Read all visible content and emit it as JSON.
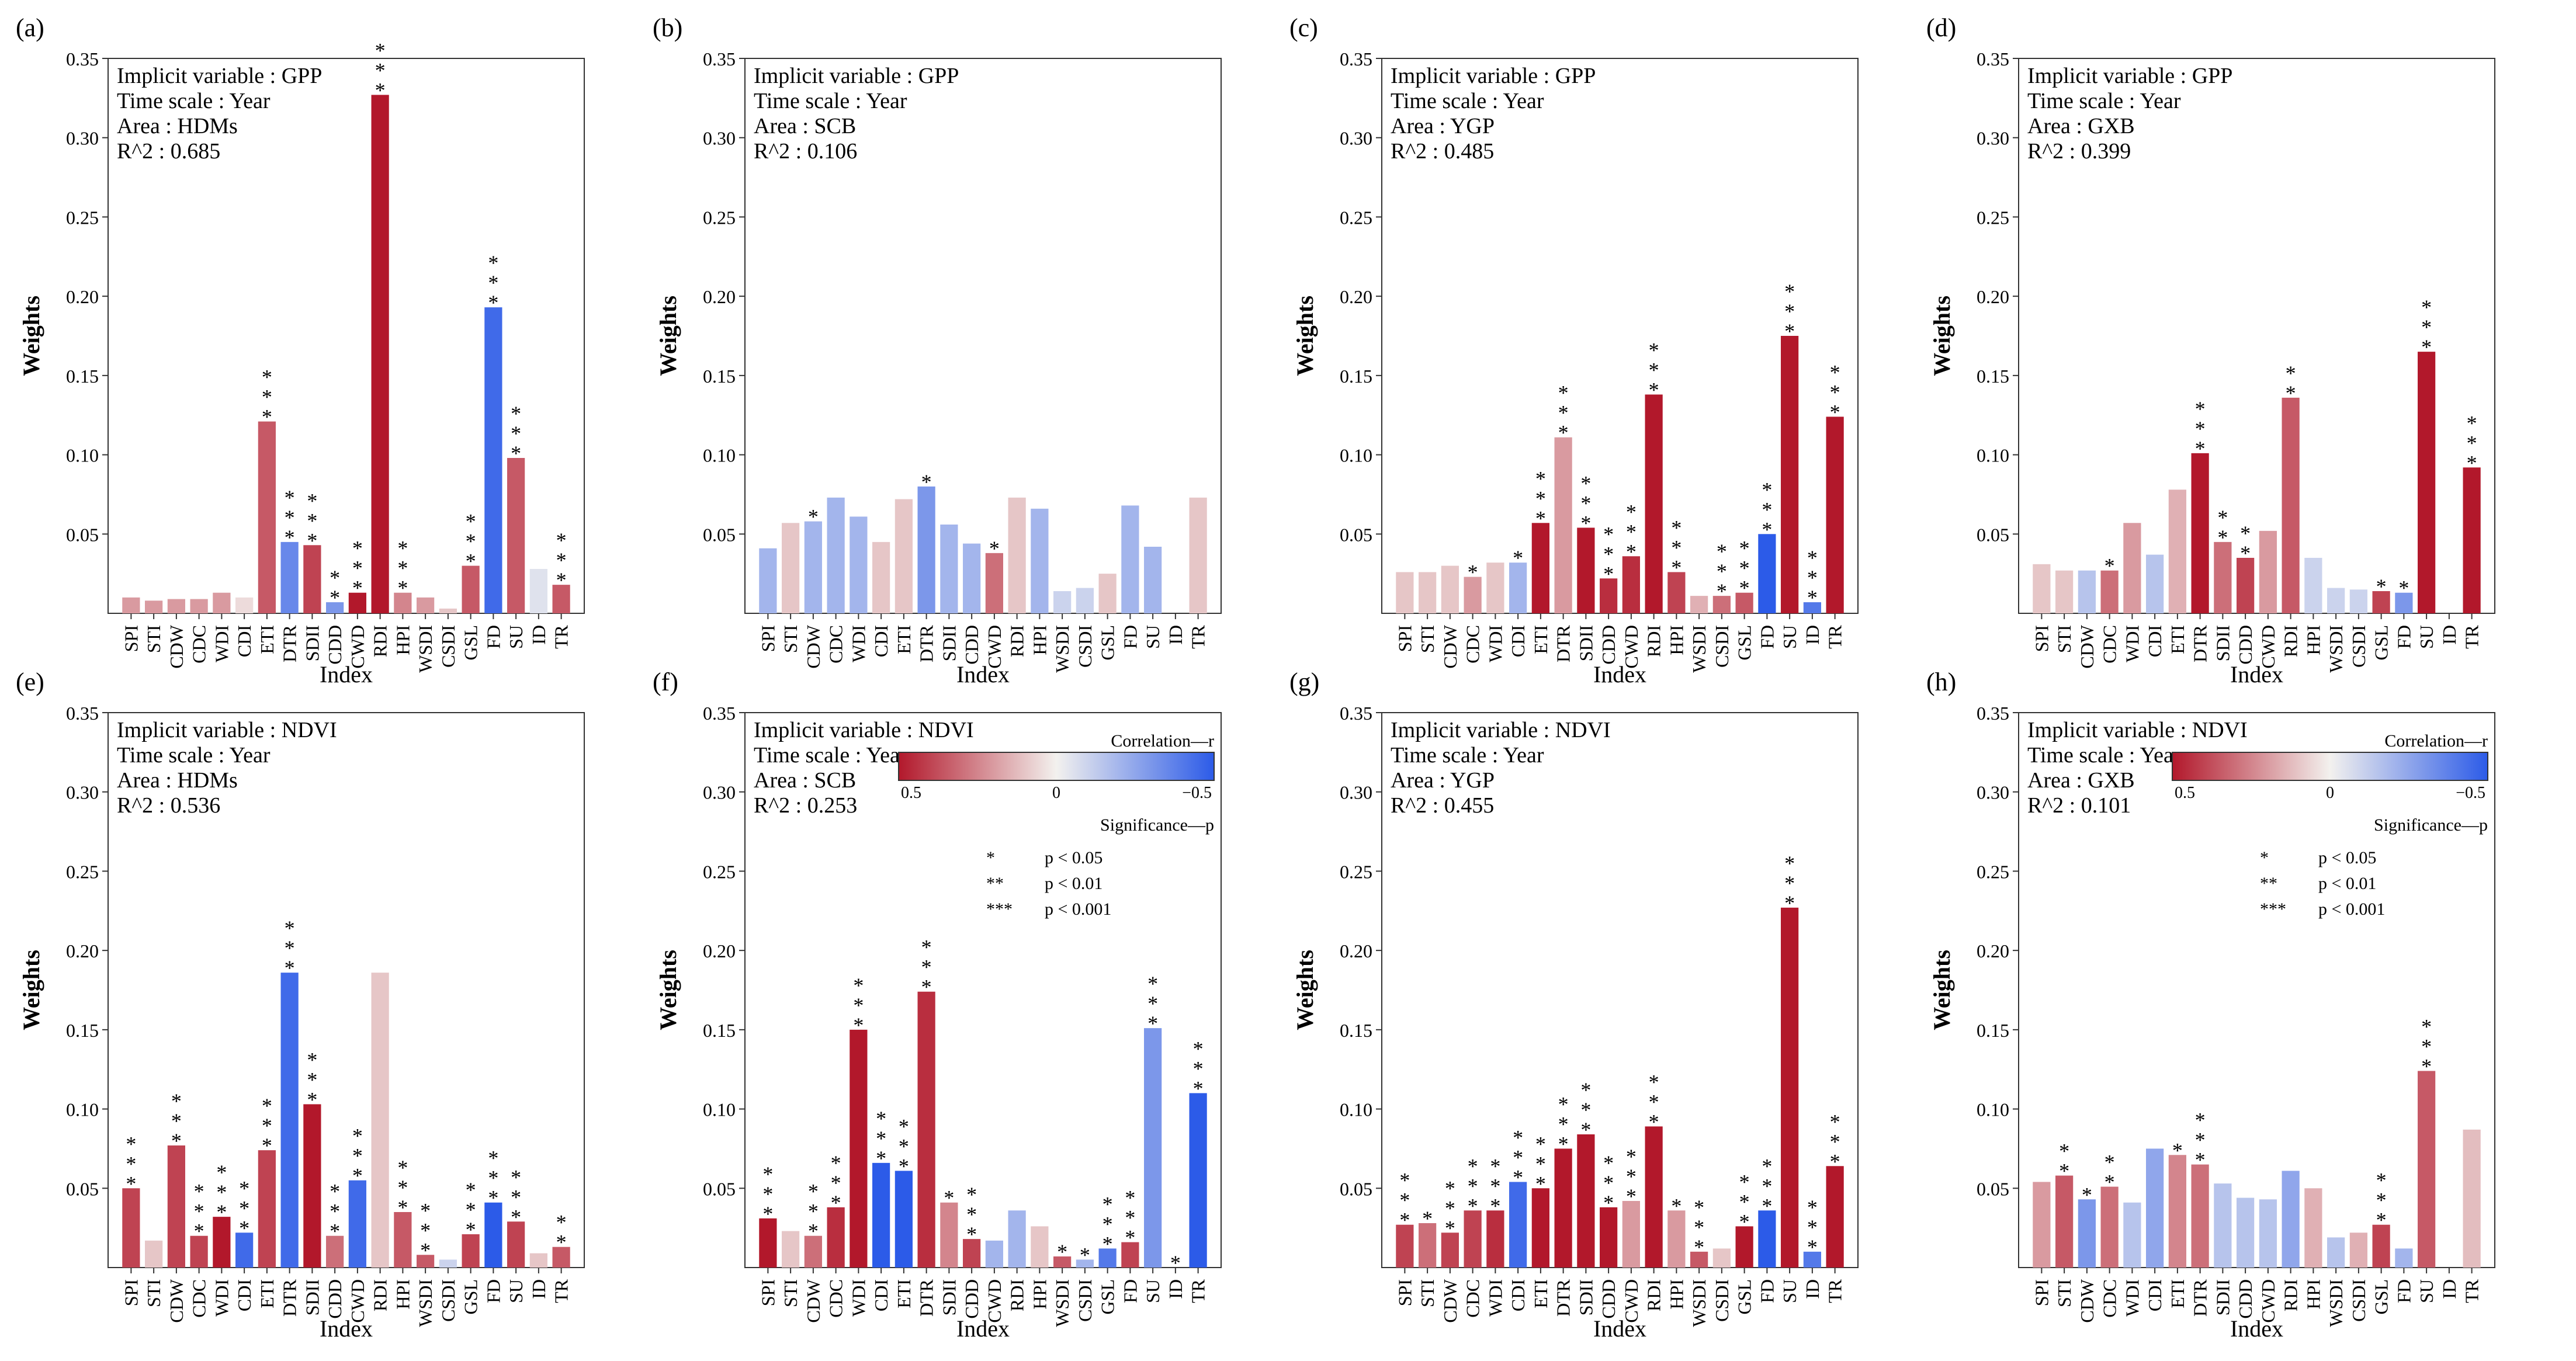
{
  "figure": {
    "axis_xlabel": "Index",
    "axis_ylabel": "Weights",
    "info_prefixes": {
      "variable": "Implicit variable : ",
      "time": "Time scale : ",
      "area": "Area : ",
      "r2": "R^2 : "
    }
  },
  "legend": {
    "colorbar_title": "Correlation—r",
    "colorbar_ticks": [
      "0.5",
      "0",
      "−0.5"
    ],
    "significance_title": "Significance—p",
    "significance_items": [
      {
        "stars": "*",
        "label": "p < 0.05"
      },
      {
        "stars": "**",
        "label": "p < 0.01"
      },
      {
        "stars": "***",
        "label": "p < 0.001"
      }
    ],
    "colors": {
      "positive": "#b2182b",
      "neutral": "#f3f1ee",
      "negative": "#2c5be8"
    }
  },
  "chart_data": [
    {
      "type": "bar",
      "panel_label": "(a)",
      "variable": "GPP",
      "time_scale": "Year",
      "area": "HDMs",
      "r2": "0.685",
      "xlabel": "Index",
      "ylabel": "Weights",
      "ylim": [
        0,
        0.35
      ],
      "yticks": [
        "0.05",
        "0.10",
        "0.15",
        "0.20",
        "0.25",
        "0.30",
        "0.35"
      ],
      "categories": [
        "SPI",
        "STI",
        "CDW",
        "CDC",
        "WDI",
        "CDI",
        "ETI",
        "DTR",
        "SDII",
        "CDD",
        "CWD",
        "RDI",
        "HPI",
        "WSDI",
        "CSDI",
        "GSL",
        "FD",
        "SU",
        "ID",
        "TR"
      ],
      "values": [
        0.01,
        0.008,
        0.009,
        0.009,
        0.013,
        0.01,
        0.121,
        0.045,
        0.043,
        0.007,
        0.013,
        0.327,
        0.013,
        0.01,
        0.003,
        0.03,
        0.193,
        0.098,
        0.028,
        0.018
      ],
      "correlation": [
        0.2,
        0.2,
        0.2,
        0.2,
        0.2,
        0.05,
        0.35,
        -0.35,
        0.4,
        -0.3,
        0.55,
        0.95,
        0.25,
        0.2,
        0.1,
        0.35,
        -0.45,
        0.35,
        -0.05,
        0.35
      ],
      "significance": [
        "",
        "",
        "",
        "",
        "",
        "",
        "***",
        "***",
        "***",
        "**",
        "***",
        "***",
        "***",
        "",
        "",
        "***",
        "***",
        "***",
        "",
        "***"
      ]
    },
    {
      "type": "bar",
      "panel_label": "(b)",
      "variable": "GPP",
      "time_scale": "Year",
      "area": "SCB",
      "r2": "0.106",
      "xlabel": "Index",
      "ylabel": "Weights",
      "ylim": [
        0,
        0.35
      ],
      "yticks": [
        "0.05",
        "0.10",
        "0.15",
        "0.20",
        "0.25",
        "0.30",
        "0.35"
      ],
      "categories": [
        "SPI",
        "STI",
        "CDW",
        "CDC",
        "WDI",
        "CDI",
        "ETI",
        "DTR",
        "SDII",
        "CDD",
        "CWD",
        "RDI",
        "HPI",
        "WSDI",
        "CSDI",
        "GSL",
        "FD",
        "SU",
        "ID",
        "TR"
      ],
      "values": [
        0.041,
        0.057,
        0.058,
        0.073,
        0.061,
        0.045,
        0.072,
        0.08,
        0.056,
        0.044,
        0.038,
        0.073,
        0.066,
        0.014,
        0.016,
        0.025,
        0.068,
        0.042,
        0.0,
        0.073
      ],
      "correlation": [
        -0.2,
        0.1,
        -0.2,
        -0.2,
        -0.2,
        0.1,
        0.1,
        -0.3,
        -0.2,
        -0.2,
        0.3,
        0.1,
        -0.2,
        -0.1,
        -0.1,
        0.1,
        -0.2,
        -0.2,
        0.0,
        0.1
      ],
      "significance": [
        "",
        "",
        "*",
        "",
        "",
        "",
        "",
        "*",
        "",
        "",
        "*",
        "",
        "",
        "",
        "",
        "",
        "",
        "",
        "",
        ""
      ]
    },
    {
      "type": "bar",
      "panel_label": "(c)",
      "variable": "GPP",
      "time_scale": "Year",
      "area": "YGP",
      "r2": "0.485",
      "xlabel": "Index",
      "ylabel": "Weights",
      "ylim": [
        0,
        0.35
      ],
      "yticks": [
        "0.05",
        "0.10",
        "0.15",
        "0.20",
        "0.25",
        "0.30",
        "0.35"
      ],
      "categories": [
        "SPI",
        "STI",
        "CDW",
        "CDC",
        "WDI",
        "CDI",
        "ETI",
        "DTR",
        "SDII",
        "CDD",
        "CWD",
        "RDI",
        "HPI",
        "WSDI",
        "CSDI",
        "GSL",
        "FD",
        "SU",
        "ID",
        "TR"
      ],
      "values": [
        0.026,
        0.026,
        0.03,
        0.023,
        0.032,
        0.032,
        0.057,
        0.111,
        0.054,
        0.022,
        0.036,
        0.138,
        0.026,
        0.011,
        0.011,
        0.013,
        0.05,
        0.175,
        0.007,
        0.124
      ],
      "correlation": [
        0.1,
        0.1,
        0.1,
        0.2,
        0.1,
        -0.2,
        0.65,
        0.2,
        0.8,
        0.45,
        0.45,
        0.7,
        0.4,
        0.15,
        0.3,
        0.35,
        -0.65,
        0.85,
        -0.4,
        0.65
      ],
      "significance": [
        "",
        "",
        "",
        "*",
        "",
        "*",
        "***",
        "***",
        "***",
        "***",
        "***",
        "***",
        "***",
        "",
        "***",
        "***",
        "***",
        "***",
        "***",
        "***"
      ]
    },
    {
      "type": "bar",
      "panel_label": "(d)",
      "variable": "GPP",
      "time_scale": "Year",
      "area": "GXB",
      "r2": "0.399",
      "xlabel": "Index",
      "ylabel": "Weights",
      "ylim": [
        0,
        0.35
      ],
      "yticks": [
        "0.05",
        "0.10",
        "0.15",
        "0.20",
        "0.25",
        "0.30",
        "0.35"
      ],
      "categories": [
        "SPI",
        "STI",
        "CDW",
        "CDC",
        "WDI",
        "CDI",
        "ETI",
        "DTR",
        "SDII",
        "CDD",
        "CWD",
        "RDI",
        "HPI",
        "WSDI",
        "CSDI",
        "GSL",
        "FD",
        "SU",
        "ID",
        "TR"
      ],
      "values": [
        0.031,
        0.027,
        0.027,
        0.027,
        0.057,
        0.037,
        0.078,
        0.101,
        0.045,
        0.035,
        0.052,
        0.136,
        0.035,
        0.016,
        0.015,
        0.014,
        0.013,
        0.165,
        0.0,
        0.092
      ],
      "correlation": [
        0.1,
        0.1,
        -0.15,
        0.3,
        0.2,
        -0.15,
        0.15,
        0.6,
        0.3,
        0.4,
        0.2,
        0.35,
        -0.1,
        -0.1,
        -0.1,
        0.4,
        -0.3,
        0.8,
        0.0,
        0.55
      ],
      "significance": [
        "",
        "",
        "",
        "*",
        "",
        "",
        "",
        "***",
        "**",
        "**",
        "",
        "**",
        "",
        "",
        "",
        "*",
        "*",
        "***",
        "",
        "***"
      ]
    },
    {
      "type": "bar",
      "panel_label": "(e)",
      "variable": "NDVI",
      "time_scale": "Year",
      "area": "HDMs",
      "r2": "0.536",
      "xlabel": "Index",
      "ylabel": "Weights",
      "ylim": [
        0,
        0.35
      ],
      "yticks": [
        "0.05",
        "0.10",
        "0.15",
        "0.20",
        "0.25",
        "0.30",
        "0.35"
      ],
      "categories": [
        "SPI",
        "STI",
        "CDW",
        "CDC",
        "WDI",
        "CDI",
        "ETI",
        "DTR",
        "SDII",
        "CDD",
        "CWD",
        "RDI",
        "HPI",
        "WSDI",
        "CSDI",
        "GSL",
        "FD",
        "SU",
        "ID",
        "TR"
      ],
      "values": [
        0.05,
        0.017,
        0.077,
        0.02,
        0.032,
        0.022,
        0.074,
        0.186,
        0.103,
        0.02,
        0.055,
        0.186,
        0.035,
        0.008,
        0.005,
        0.021,
        0.041,
        0.029,
        0.009,
        0.013
      ],
      "correlation": [
        0.4,
        0.1,
        0.4,
        0.4,
        0.5,
        -0.45,
        0.4,
        -0.45,
        0.7,
        0.3,
        -0.45,
        0.1,
        0.35,
        0.35,
        -0.1,
        0.4,
        -0.5,
        0.4,
        0.1,
        0.35
      ],
      "significance": [
        "***",
        "",
        "***",
        "***",
        "***",
        "***",
        "***",
        "***",
        "***",
        "***",
        "***",
        "",
        "***",
        "***",
        "",
        "***",
        "***",
        "***",
        "",
        "**"
      ]
    },
    {
      "type": "bar",
      "panel_label": "(f)",
      "variable": "NDVI",
      "time_scale": "Year",
      "area": "SCB",
      "r2": "0.253",
      "xlabel": "Index",
      "ylabel": "Weights",
      "ylim": [
        0,
        0.35
      ],
      "yticks": [
        "0.05",
        "0.10",
        "0.15",
        "0.20",
        "0.25",
        "0.30",
        "0.35"
      ],
      "categories": [
        "SPI",
        "STI",
        "CDW",
        "CDC",
        "WDI",
        "CDI",
        "ETI",
        "DTR",
        "SDII",
        "CDD",
        "CWD",
        "RDI",
        "HPI",
        "WSDI",
        "CSDI",
        "GSL",
        "FD",
        "SU",
        "ID",
        "TR"
      ],
      "values": [
        0.031,
        0.023,
        0.02,
        0.038,
        0.15,
        0.066,
        0.061,
        0.174,
        0.041,
        0.018,
        0.017,
        0.036,
        0.026,
        0.007,
        0.005,
        0.012,
        0.016,
        0.151,
        0.0,
        0.11
      ],
      "correlation": [
        0.5,
        0.1,
        0.3,
        0.45,
        0.5,
        -0.5,
        -0.55,
        0.45,
        0.25,
        0.4,
        -0.2,
        -0.2,
        0.1,
        0.35,
        -0.2,
        -0.4,
        0.4,
        -0.3,
        0.0,
        -0.55
      ],
      "significance": [
        "***",
        "",
        "***",
        "***",
        "***",
        "***",
        "***",
        "***",
        "*",
        "***",
        "",
        "",
        "",
        "*",
        "*",
        "***",
        "***",
        "***",
        "*",
        "***"
      ]
    },
    {
      "type": "bar",
      "panel_label": "(g)",
      "variable": "NDVI",
      "time_scale": "Year",
      "area": "YGP",
      "r2": "0.455",
      "xlabel": "Index",
      "ylabel": "Weights",
      "ylim": [
        0,
        0.35
      ],
      "yticks": [
        "0.05",
        "0.10",
        "0.15",
        "0.20",
        "0.25",
        "0.30",
        "0.35"
      ],
      "categories": [
        "SPI",
        "STI",
        "CDW",
        "CDC",
        "WDI",
        "CDI",
        "ETI",
        "DTR",
        "SDII",
        "CDD",
        "CWD",
        "RDI",
        "HPI",
        "WSDI",
        "CSDI",
        "GSL",
        "FD",
        "SU",
        "ID",
        "TR"
      ],
      "values": [
        0.027,
        0.028,
        0.022,
        0.036,
        0.036,
        0.054,
        0.05,
        0.075,
        0.084,
        0.038,
        0.042,
        0.089,
        0.036,
        0.01,
        0.012,
        0.026,
        0.036,
        0.227,
        0.01,
        0.064
      ],
      "correlation": [
        0.4,
        0.3,
        0.4,
        0.4,
        0.45,
        -0.45,
        0.55,
        0.6,
        0.95,
        0.65,
        0.2,
        0.5,
        0.2,
        0.35,
        0.1,
        0.5,
        -0.55,
        0.9,
        -0.4,
        0.55
      ],
      "significance": [
        "***",
        "*",
        "***",
        "***",
        "***",
        "***",
        "***",
        "***",
        "***",
        "***",
        "***",
        "***",
        "*",
        "***",
        "",
        "***",
        "***",
        "***",
        "***",
        "***"
      ]
    },
    {
      "type": "bar",
      "panel_label": "(h)",
      "variable": "NDVI",
      "time_scale": "Year",
      "area": "GXB",
      "r2": "0.101",
      "xlabel": "Index",
      "ylabel": "Weights",
      "ylim": [
        0,
        0.35
      ],
      "yticks": [
        "0.05",
        "0.10",
        "0.15",
        "0.20",
        "0.25",
        "0.30",
        "0.35"
      ],
      "categories": [
        "SPI",
        "STI",
        "CDW",
        "CDC",
        "WDI",
        "CDI",
        "ETI",
        "DTR",
        "SDII",
        "CDD",
        "CWD",
        "RDI",
        "HPI",
        "WSDI",
        "CSDI",
        "GSL",
        "FD",
        "SU",
        "ID",
        "TR"
      ],
      "values": [
        0.054,
        0.058,
        0.043,
        0.051,
        0.041,
        0.075,
        0.071,
        0.065,
        0.053,
        0.044,
        0.043,
        0.061,
        0.05,
        0.019,
        0.022,
        0.027,
        0.012,
        0.124,
        0.0,
        0.087
      ],
      "correlation": [
        0.2,
        0.35,
        -0.3,
        0.3,
        -0.15,
        -0.25,
        0.25,
        0.3,
        -0.15,
        -0.15,
        -0.15,
        -0.25,
        0.15,
        -0.15,
        0.15,
        0.4,
        -0.2,
        0.35,
        0.0,
        0.12
      ],
      "significance": [
        "",
        "**",
        "*",
        "**",
        "",
        "",
        "*",
        "***",
        "",
        "",
        "",
        "",
        "",
        "",
        "",
        "***",
        "",
        "***",
        "",
        ""
      ]
    }
  ]
}
